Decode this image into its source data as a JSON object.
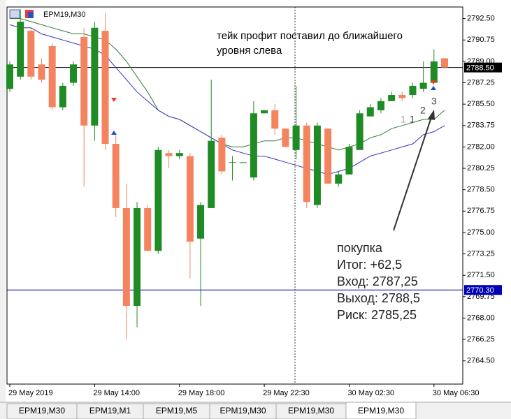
{
  "chart_data": {
    "type": "candlestick",
    "title": "EPM19,M30",
    "categories": [
      "29 May 2019",
      null,
      null,
      null,
      null,
      null,
      null,
      null,
      "29 May 14:00",
      null,
      null,
      null,
      null,
      null,
      null,
      null,
      "29 May 18:00",
      null,
      null,
      null,
      null,
      null,
      null,
      null,
      "29 May 22:30",
      null,
      null,
      null,
      null,
      null,
      null,
      null,
      "30 May 02:30",
      null,
      null,
      null,
      null,
      null,
      null,
      null,
      "30 May 06:30",
      null
    ],
    "open": [
      2786.75,
      2787.75,
      2791.5,
      2788.75,
      2790.25,
      2785.25,
      2787.25,
      2791.0,
      2783.75,
      2791.5,
      2782.25,
      2777.0,
      2769.0,
      2777.0,
      2773.5,
      2781.5,
      2781.25,
      2781.25,
      2774.5,
      2777.0,
      2782.75,
      2780.75,
      2780.75,
      2779.5,
      2784.75,
      2785.0,
      2783.5,
      2781.75,
      2783.75,
      2777.25,
      2783.5,
      2779.0,
      2779.75,
      2781.75,
      2784.5,
      2785.0,
      2785.75,
      2786.25,
      2786.25,
      2786.75,
      2787.25,
      2789.25
    ],
    "high": [
      2789.0,
      2793.25,
      2791.75,
      2789.25,
      2790.5,
      2787.25,
      2789.0,
      2791.75,
      2792.25,
      2793.0,
      2783.0,
      2779.0,
      2777.5,
      2777.25,
      2782.0,
      2781.75,
      2781.75,
      2781.5,
      2777.5,
      2787.5,
      2783.0,
      2781.25,
      2780.75,
      2785.75,
      2785.0,
      2785.5,
      2783.5,
      2787.0,
      2784.0,
      2784.0,
      2783.5,
      2780.0,
      2782.25,
      2785.0,
      2785.5,
      2786.0,
      2786.5,
      2786.5,
      2787.25,
      2789.0,
      2790.0,
      2789.25
    ],
    "low": [
      2786.5,
      2787.5,
      2787.5,
      2787.25,
      2785.0,
      2785.0,
      2787.0,
      2778.75,
      2782.5,
      2781.75,
      2776.25,
      2766.25,
      2767.25,
      2773.5,
      2773.25,
      2780.25,
      2781.0,
      2771.25,
      2769.0,
      2777.0,
      2779.75,
      2779.25,
      2780.75,
      2779.25,
      2784.75,
      2783.0,
      2782.0,
      2781.0,
      2777.0,
      2777.0,
      2779.0,
      2778.75,
      2779.75,
      2781.75,
      2784.5,
      2784.75,
      2785.75,
      2785.75,
      2786.0,
      2786.5,
      2787.25,
      2788.5
    ],
    "close": [
      2788.75,
      2792.25,
      2787.75,
      2787.5,
      2785.25,
      2787.0,
      2788.75,
      2783.75,
      2791.75,
      2782.25,
      2777.0,
      2769.0,
      2777.0,
      2773.5,
      2781.75,
      2781.25,
      2781.5,
      2774.25,
      2777.25,
      2782.5,
      2780.0,
      2780.75,
      2780.75,
      2784.75,
      2785.0,
      2783.5,
      2782.0,
      2783.75,
      2777.5,
      2783.75,
      2779.0,
      2779.75,
      2782.0,
      2784.75,
      2785.25,
      2785.75,
      2786.25,
      2786.0,
      2787.0,
      2787.25,
      2789.0,
      2788.5
    ],
    "up_color": "#1f8b24",
    "down_color": "#f4845f",
    "moving_averages": [
      {
        "color": "#2e7d32",
        "values": [
          2792.5,
          2792.5,
          2792.25,
          2792.0,
          2791.75,
          2791.5,
          2791.25,
          2791.25,
          2791.0,
          2790.75,
          2790.0,
          2789.0,
          2787.75,
          2786.5,
          2785.0,
          2784.5,
          2784.25,
          2783.75,
          2783.25,
          2782.75,
          2782.25,
          2782.0,
          2782.0,
          2782.25,
          2782.5,
          2782.5,
          2782.75,
          2782.75,
          2782.5,
          2782.25,
          2782.0,
          2781.75,
          2782.0,
          2782.25,
          2782.75,
          2783.0,
          2783.5,
          2783.75,
          2784.0,
          2784.25,
          2784.25,
          2785.0
        ]
      },
      {
        "color": "#3030c8",
        "values": [
          2792.0,
          2791.75,
          2791.75,
          2791.25,
          2791.0,
          2790.75,
          2790.5,
          2790.25,
          2790.0,
          2789.5,
          2788.5,
          2787.5,
          2786.5,
          2785.75,
          2785.0,
          2784.5,
          2784.25,
          2783.75,
          2783.25,
          2782.75,
          2782.25,
          2781.75,
          2781.5,
          2781.25,
          2781.25,
          2781.0,
          2780.75,
          2780.5,
          2780.25,
          2780.0,
          2779.75,
          2780.0,
          2780.25,
          2780.75,
          2781.25,
          2781.5,
          2781.75,
          2782.0,
          2782.25,
          2783.0,
          2783.25,
          2783.75
        ]
      }
    ],
    "ylim": [
      2762.6,
      2793.45
    ],
    "yticks": [
      {
        "value": 2764.5,
        "label": "2764.50"
      },
      {
        "value": 2766.25,
        "label": "2766.25"
      },
      {
        "value": 2768.0,
        "label": "2768.00"
      },
      {
        "value": 2769.75,
        "label": "2769.75"
      },
      {
        "value": 2771.5,
        "label": "2771.50"
      },
      {
        "value": 2773.25,
        "label": "2773.25"
      },
      {
        "value": 2775.0,
        "label": "2775.00"
      },
      {
        "value": 2776.75,
        "label": "2776.75"
      },
      {
        "value": 2778.5,
        "label": "2778.50"
      },
      {
        "value": 2780.25,
        "label": "2780.25"
      },
      {
        "value": 2782.0,
        "label": "2782.00"
      },
      {
        "value": 2783.75,
        "label": "2783.75"
      },
      {
        "value": 2785.5,
        "label": "2785.50"
      },
      {
        "value": 2787.25,
        "label": "2787.25"
      },
      {
        "value": 2789.0,
        "label": "2789.00"
      },
      {
        "value": 2790.75,
        "label": "2790.75"
      },
      {
        "value": 2792.5,
        "label": "2792.50"
      }
    ],
    "levels": [
      {
        "value": 2788.5,
        "label": "2788.50",
        "color": "#000000"
      },
      {
        "value": 2770.3,
        "label": "2770.30",
        "color": "#0000b4"
      }
    ],
    "note": [
      "тейк профит поставил до ближайшего",
      "уровня слева"
    ],
    "trade_summary": [
      "покупка",
      "Итог: +62,5",
      "Вход: 2787,25",
      "Выход: 2788,5",
      "Риск: 2785,25"
    ],
    "trade_numbers": [
      "1",
      "1",
      "2",
      "3"
    ],
    "tabs": [
      "EPM19,M30",
      "EPM19,M1",
      "EPM19,M5",
      "EPM19,M30",
      "EPM19,M30",
      "EPM19,M30"
    ],
    "active_tab": 5
  }
}
